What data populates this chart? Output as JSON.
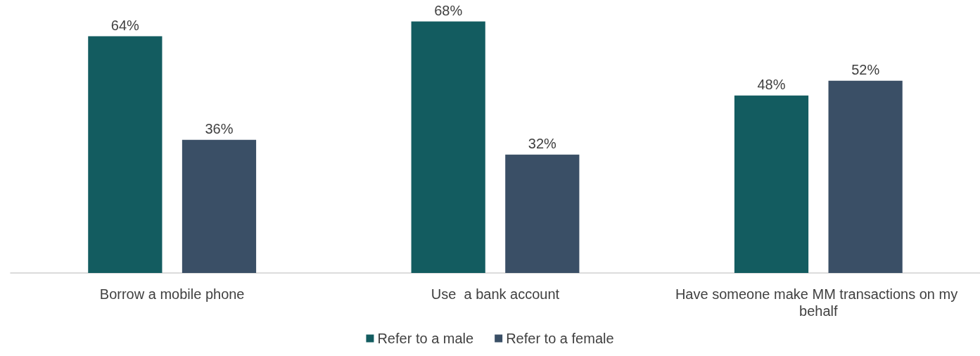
{
  "chart_data": {
    "type": "bar",
    "categories": [
      "Borrow a mobile phone",
      "Use  a bank account",
      "Have someone make MM transactions on my behalf"
    ],
    "series": [
      {
        "name": "Refer to a male",
        "color": "#135c60",
        "values": [
          64,
          68,
          48
        ],
        "value_labels": [
          "64%",
          "68%",
          "48%"
        ]
      },
      {
        "name": "Refer to a female",
        "color": "#3a4f66",
        "values": [
          36,
          32,
          52
        ],
        "value_labels": [
          "36%",
          "32%",
          "52%"
        ]
      }
    ],
    "legend": "bottom"
  }
}
